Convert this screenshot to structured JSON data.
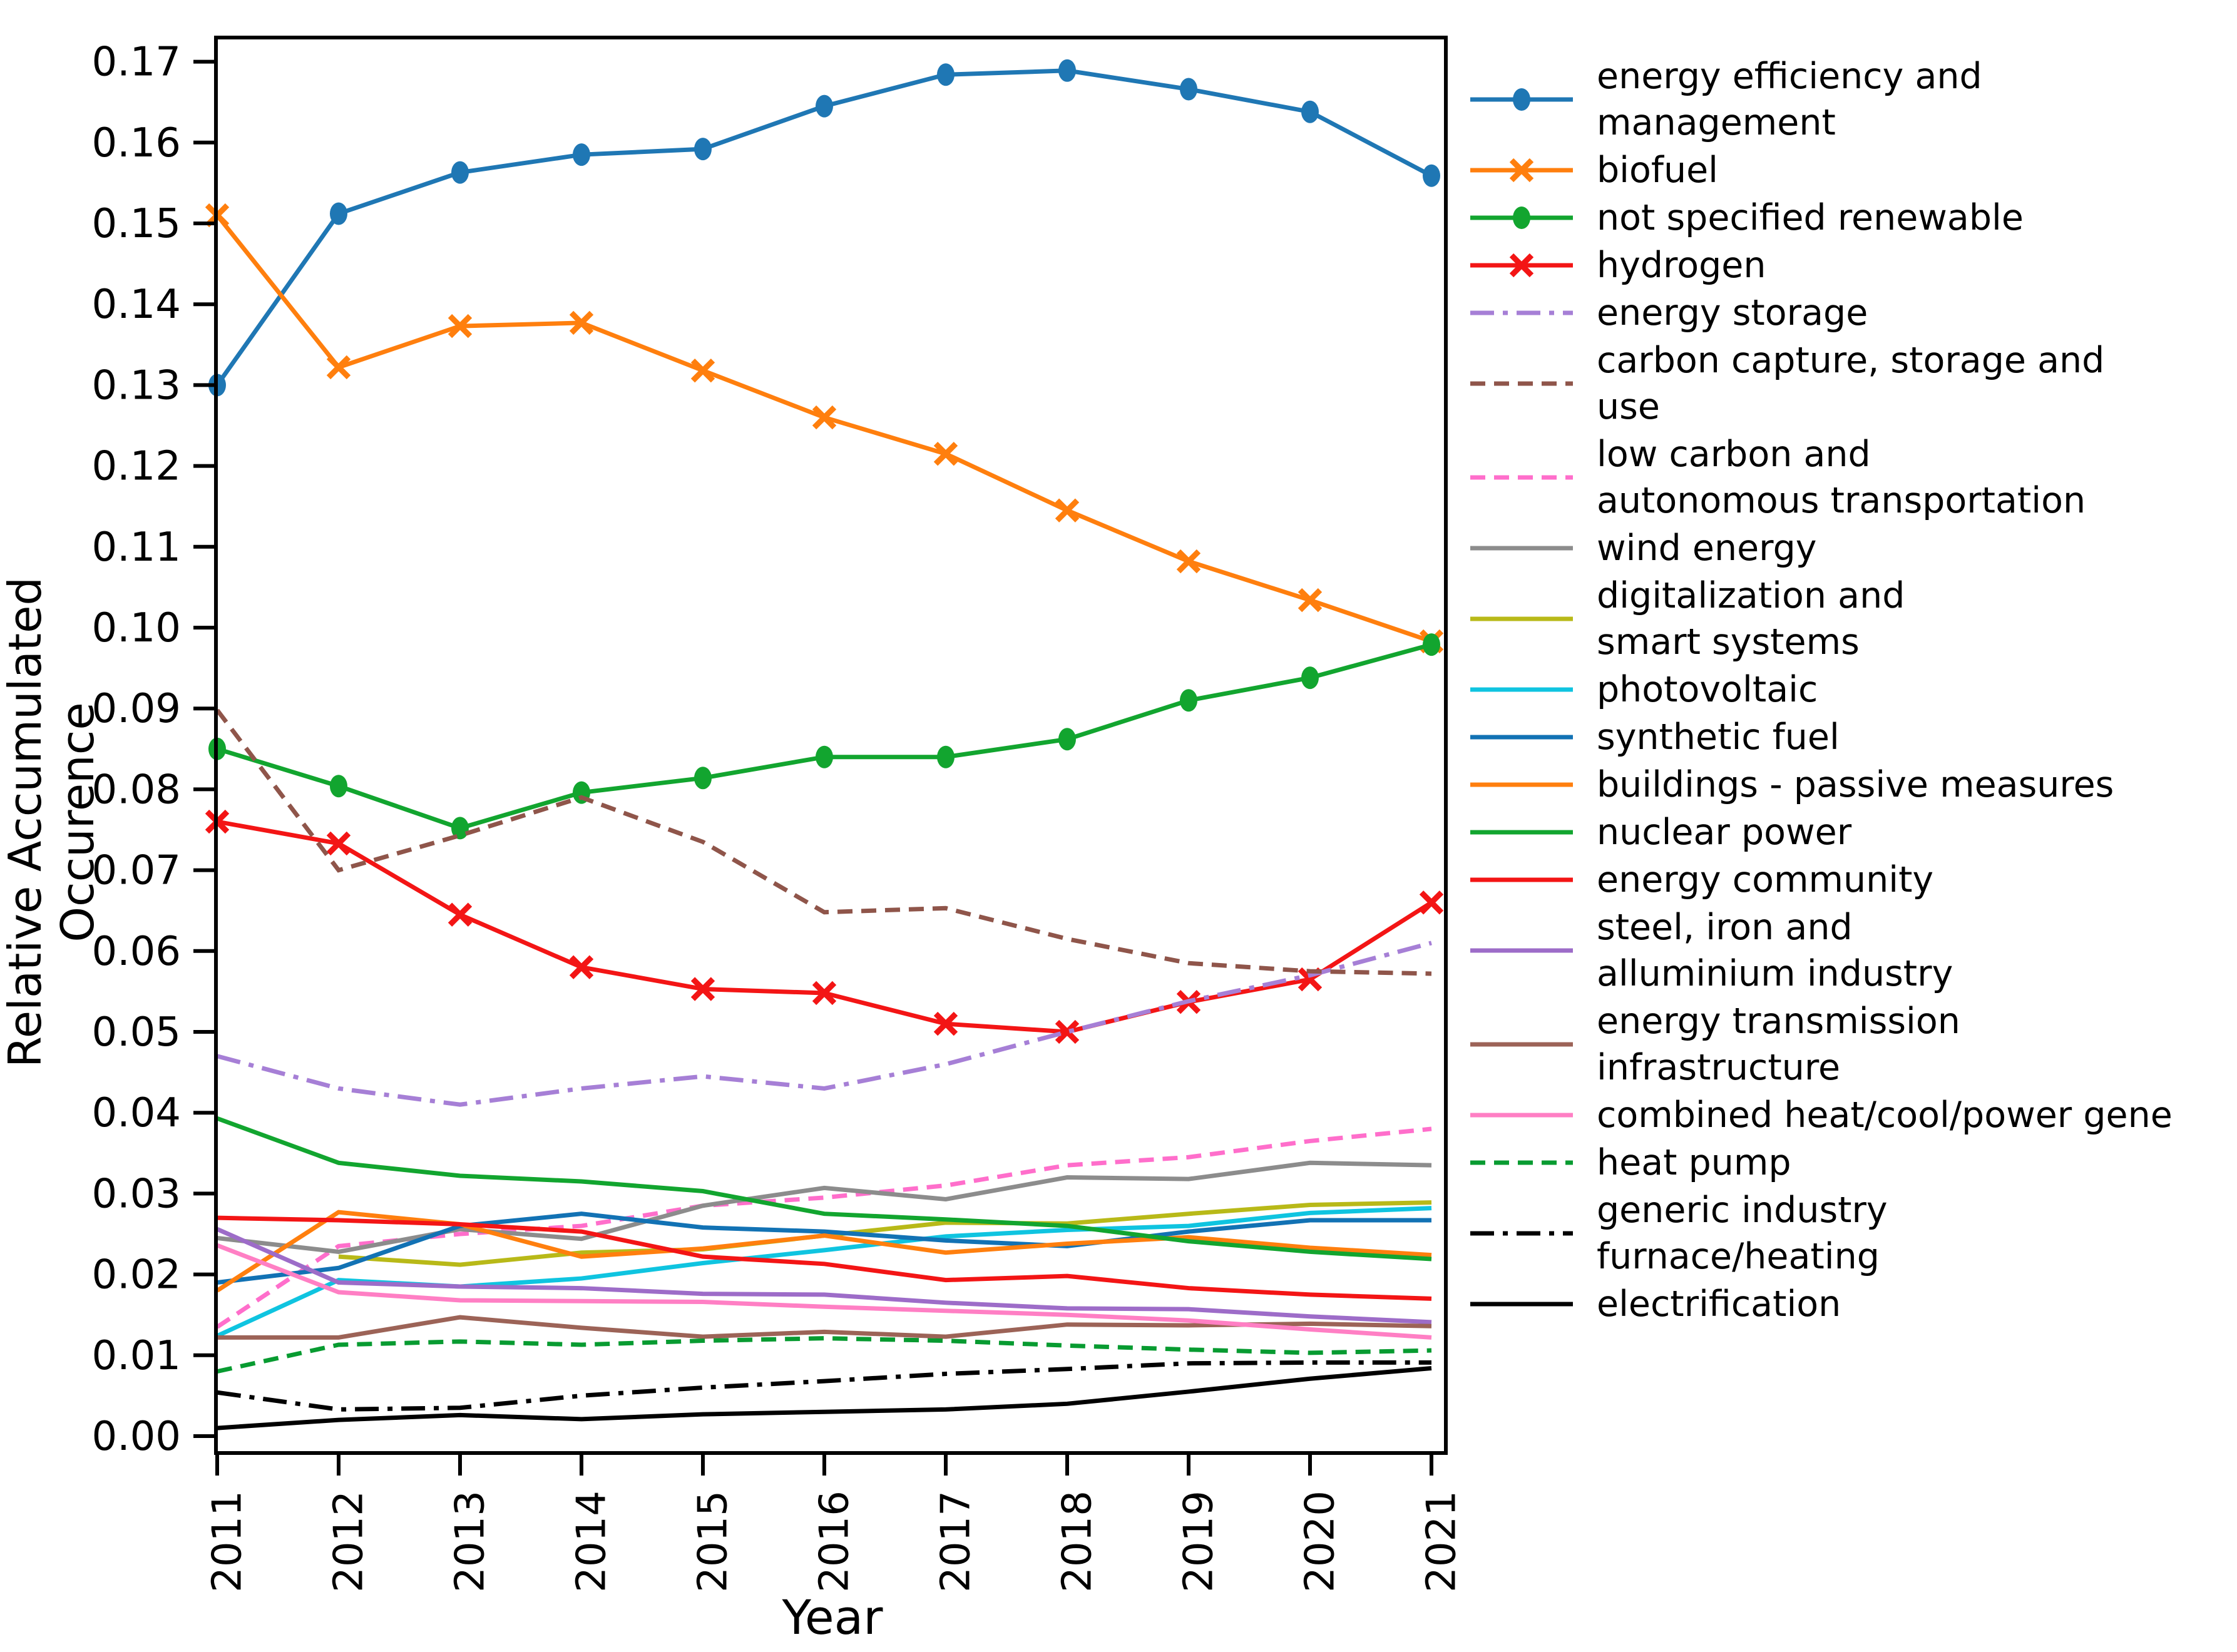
{
  "chart_data": {
    "type": "line",
    "title": "",
    "xlabel": "Year",
    "ylabel": "Relative Accumulated Occurence",
    "x": [
      2011,
      2012,
      2013,
      2014,
      2015,
      2016,
      2017,
      2018,
      2019,
      2020,
      2021
    ],
    "ylim": [
      -0.002,
      0.173
    ],
    "grid": false,
    "legend_position": "right",
    "yticks": [
      "0.00",
      "0.01",
      "0.02",
      "0.03",
      "0.04",
      "0.05",
      "0.06",
      "0.07",
      "0.08",
      "0.09",
      "0.10",
      "0.11",
      "0.12",
      "0.13",
      "0.14",
      "0.15",
      "0.16",
      "0.17"
    ],
    "series": [
      {
        "name": "energy-efficiency-and-management",
        "legend_label": "energy efficiency and\nmanagement",
        "color": "#1f77b4",
        "linestyle": "solid",
        "marker": "circle",
        "values": [
          0.13,
          0.1512,
          0.1563,
          0.1585,
          0.1592,
          0.1645,
          0.1684,
          0.1689,
          0.1666,
          0.1638,
          0.1559
        ]
      },
      {
        "name": "biofuel",
        "legend_label": "biofuel",
        "color": "#ff7f0e",
        "linestyle": "solid",
        "marker": "x",
        "values": [
          0.151,
          0.1322,
          0.1373,
          0.1377,
          0.1318,
          0.126,
          0.1215,
          0.1145,
          0.1082,
          0.1034,
          0.0983
        ]
      },
      {
        "name": "not-specified-renewable",
        "legend_label": "not specified renewable",
        "color": "#12a52f",
        "linestyle": "solid",
        "marker": "circle",
        "values": [
          0.085,
          0.0804,
          0.0752,
          0.0796,
          0.0814,
          0.084,
          0.084,
          0.0862,
          0.091,
          0.0938,
          0.0979
        ]
      },
      {
        "name": "hydrogen",
        "legend_label": "hydrogen",
        "color": "#f31515",
        "linestyle": "solid",
        "marker": "x",
        "values": [
          0.076,
          0.0733,
          0.0645,
          0.058,
          0.0553,
          0.0548,
          0.051,
          0.05,
          0.0537,
          0.0565,
          0.066
        ]
      },
      {
        "name": "energy-storage",
        "legend_label": "energy storage",
        "color": "#a67fd6",
        "linestyle": "dashdot",
        "marker": "none",
        "values": [
          0.047,
          0.043,
          0.041,
          0.043,
          0.0445,
          0.043,
          0.046,
          0.05,
          0.0538,
          0.057,
          0.061
        ]
      },
      {
        "name": "carbon-capture-storage-and-use",
        "legend_label": "carbon capture, storage and\nuse",
        "color": "#8f554a",
        "linestyle": "dashed",
        "marker": "none",
        "values": [
          0.0898,
          0.07,
          0.0743,
          0.079,
          0.0735,
          0.0648,
          0.0653,
          0.0615,
          0.0585,
          0.0575,
          0.0572
        ]
      },
      {
        "name": "low-carbon-autonomous-transportation",
        "legend_label": "low carbon and\nautonomous transportation",
        "color": "#ff6ecb",
        "linestyle": "dashed",
        "marker": "none",
        "values": [
          0.0135,
          0.0235,
          0.025,
          0.026,
          0.0285,
          0.0295,
          0.031,
          0.0335,
          0.0345,
          0.0365,
          0.038
        ]
      },
      {
        "name": "wind-energy",
        "legend_label": "wind energy",
        "color": "#8c8c8c",
        "linestyle": "solid",
        "marker": "none",
        "values": [
          0.0245,
          0.0228,
          0.0256,
          0.0244,
          0.0285,
          0.0307,
          0.0293,
          0.032,
          0.0318,
          0.0338,
          0.0335
        ]
      },
      {
        "name": "digitalization-and-smart-systems",
        "legend_label": "digitalization and\nsmart systems",
        "color": "#b8b918",
        "linestyle": "solid",
        "marker": "none",
        "values": [
          null,
          0.0222,
          0.0212,
          0.0227,
          0.0231,
          0.0248,
          0.0264,
          0.0263,
          0.0275,
          0.0286,
          0.0289
        ]
      },
      {
        "name": "photovoltaic",
        "legend_label": "photovoltaic",
        "color": "#0fc4e0",
        "linestyle": "solid",
        "marker": "none",
        "values": [
          0.0124,
          0.0193,
          0.0185,
          0.0195,
          0.0214,
          0.023,
          0.0247,
          0.0255,
          0.026,
          0.0276,
          0.0282
        ]
      },
      {
        "name": "synthetic-fuel",
        "legend_label": "synthetic fuel",
        "color": "#1272b4",
        "linestyle": "solid",
        "marker": "none",
        "values": [
          0.019,
          0.0208,
          0.026,
          0.0275,
          0.0258,
          0.0253,
          0.0242,
          0.0235,
          0.0253,
          0.0267,
          0.0267
        ]
      },
      {
        "name": "buildings-passive-measures",
        "legend_label": "buildings - passive measures",
        "color": "#ff7f0e",
        "linestyle": "solid",
        "marker": "none",
        "values": [
          0.018,
          0.0277,
          0.0262,
          0.0222,
          0.0232,
          0.0248,
          0.0227,
          0.0238,
          0.0246,
          0.0233,
          0.0224
        ]
      },
      {
        "name": "nuclear-power",
        "legend_label": "nuclear power",
        "color": "#12a52f",
        "linestyle": "solid",
        "marker": "none",
        "values": [
          0.0393,
          0.0338,
          0.0322,
          0.0315,
          0.0303,
          0.0275,
          0.0268,
          0.026,
          0.0241,
          0.0228,
          0.0219
        ]
      },
      {
        "name": "energy-community",
        "legend_label": "energy community",
        "color": "#f31515",
        "linestyle": "solid",
        "marker": "none",
        "values": [
          0.027,
          0.0267,
          0.0262,
          0.0253,
          0.0222,
          0.0213,
          0.0193,
          0.0198,
          0.0183,
          0.0175,
          0.017
        ]
      },
      {
        "name": "steel-iron-and-alluminium-industry",
        "legend_label": "steel, iron and\nalluminium industry",
        "color": "#9d6cc8",
        "linestyle": "solid",
        "marker": "none",
        "values": [
          0.0256,
          0.019,
          0.0185,
          0.0183,
          0.0176,
          0.0175,
          0.0165,
          0.0158,
          0.0157,
          0.0148,
          0.0141
        ]
      },
      {
        "name": "energy-transmission-infrastructure",
        "legend_label": "energy transmission\ninfrastructure",
        "color": "#9c6357",
        "linestyle": "solid",
        "marker": "none",
        "values": [
          0.0122,
          0.0122,
          0.0147,
          0.0134,
          0.0123,
          0.0129,
          0.0123,
          0.0138,
          0.0137,
          0.0139,
          0.0136
        ]
      },
      {
        "name": "combined-heat-cool-power-generation",
        "legend_label": "combined heat/cool/power gene",
        "color": "#ff7fc4",
        "linestyle": "solid",
        "marker": "none",
        "values": [
          0.0236,
          0.0178,
          0.0168,
          0.0167,
          0.0166,
          0.016,
          0.0155,
          0.015,
          0.0143,
          0.0132,
          0.0122
        ]
      },
      {
        "name": "heat-pump",
        "legend_label": "heat pump",
        "color": "#089b31",
        "linestyle": "dashed",
        "marker": "none",
        "values": [
          0.008,
          0.0113,
          0.0117,
          0.0113,
          0.0118,
          0.0121,
          0.0118,
          0.0112,
          0.0107,
          0.0103,
          0.0106
        ]
      },
      {
        "name": "generic-industry-furnace-heating",
        "legend_label": "generic industry\nfurnace/heating",
        "color": "#000000",
        "linestyle": "dashdot",
        "marker": "none",
        "values": [
          0.0054,
          0.0033,
          0.0035,
          0.005,
          0.006,
          0.0068,
          0.0077,
          0.0083,
          0.009,
          0.0091,
          0.0091
        ]
      },
      {
        "name": "electrification",
        "legend_label": "electrification",
        "color": "#000000",
        "linestyle": "solid",
        "marker": "none",
        "values": [
          0.001,
          0.002,
          0.0026,
          0.0021,
          0.0027,
          0.003,
          0.0033,
          0.004,
          0.0055,
          0.0071,
          0.0084
        ]
      }
    ]
  }
}
